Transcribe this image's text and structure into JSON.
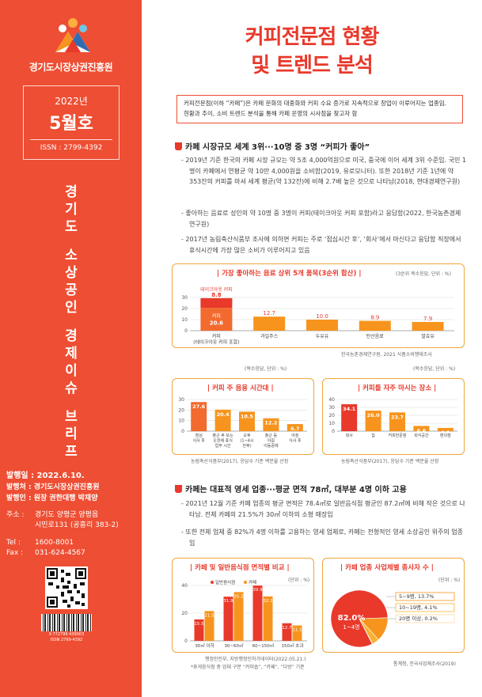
{
  "sidebar": {
    "org_name": "경기도시장상권진흥원",
    "year": "2022년",
    "month": "5월호",
    "issn": "ISSN : 2799-4392",
    "vertical_title": [
      "경기도",
      "소상공인",
      "경제이슈",
      "브리프"
    ],
    "pub_date": "발행일 : 2022.6.10.",
    "publisher": "발행처 : 경기도시장상권진흥원",
    "issuer": "발행인 : 원장 권한대행 박재양",
    "address_label": "주소 :",
    "address_1": "경기도 양평군 양평읍",
    "address_2": "시민로131 (공흥리 383-2)",
    "tel_label": "Tel :",
    "tel": "1600-8001",
    "fax_label": "Fax :",
    "fax": "031-624-4567",
    "barcode_text": "9 772799 439003",
    "barcode_issn": "ISSN 2799-4392"
  },
  "main": {
    "title_line1": "커피전문점 현황",
    "title_line2": "및 트렌드 분석",
    "intro_line1": "커피전문점(이하 “카페”)은 카페 문화의 대중화와 커피 수요 증가로 지속적으로 창업이 이루어지는 업종임.",
    "intro_line2": "현황과 추이, 소비 트렌드 분석을 통해 카페 운영의 시사점을 찾고자 함",
    "section1": "카페 시장규모 세계 3위···10명 중 3명 “커피가 좋아”",
    "s1_p1": "- 2019년 기준 한국의 카페 시장 규모는 약 5조 4,000억원으로 미국, 중국에 이어 세계 3위 수준임. 국민 1명이 카페에서 연평균 약 10만 4,000원을 소비함(2019, 유로모니터). 또한 2018년 기준 1년에 약 353잔의 커피를 마셔 세계 평균(약 132잔)에 비해 2.7배 높은 것으로 나타남(2018, 현대경제연구원)",
    "s1_p2": "- 좋아하는 음료로 성인의 약 10명 중 3명이 커피(테이크아웃 커피 포함)라고 응답함(2022, 한국농촌경제연구원)",
    "s1_p3": "- 2017년 농림축산식품부 조사에 의하면 커피는 주로 ‘점심시간 후’, ‘회사’에서 마신다고 응답함 직장에서 휴식시간에 가장 많은 소비가 이루어지고 있음",
    "section2": "카페는 대표적 영세 업종···평균 면적 78㎡, 대부분 4명 이하 고용",
    "s2_p1": "- 2021년 12월 기준 카페 업종의 평균 면적은 78.4㎡로 일반음식점 평균인 87.2㎡에 비해 작은 것으로 나타남. 전체 카페의 21.5%가 30㎡ 이하의 소형 매장임",
    "s2_p2": "- 또한 전체 업체 중 82%가 4명 이하를 고용하는 영세 업체로, 카페는 전형적인 영세 소상공인 위주의 업종임"
  },
  "charts": {
    "c1": {
      "title": "| 가장 좋아하는 음료 상위 5개 품목(3순위 합산) |",
      "unit": "(3순위 복수응답, 단위 : %)",
      "source": "한국농촌경제연구원, 2021 식품소비행태조사",
      "takeout_label": "테이크아웃 커피",
      "coffee_label": "커피"
    },
    "c2": {
      "title": "| 커피 주 음용 시간대 |",
      "unit": "(복수응답, 단위 : %)",
      "source": "농림축산식품부(2017), 응답수 기준 백분율 산정"
    },
    "c3": {
      "title": "| 커피를 자주 마시는 장소 |",
      "unit": "(복수응답, 단위 : %)",
      "source": "농림축산식품부(2017), 응답수 기준 백분율 산정"
    },
    "c4": {
      "title": "| 카페 및 일반음식점 면적별 비교 |",
      "unit": "(단위 : %)",
      "legend": [
        "일반음식점",
        "카페"
      ],
      "source": "행정안전부, 지방행정인허가데이터(2022.05.21.)",
      "note": "*휴게음식점 중 업태 구분 “커피숍”, “카페”, “다방” 기준"
    },
    "c5": {
      "title": "| 카페 업종 사업체별 종사자 수 |",
      "unit": "(단위 : %)",
      "source": "통계청, 전국사업체조사(2019)",
      "big_value": "82.0%",
      "big_label": "1~4명"
    }
  },
  "chart_data": [
    {
      "type": "bar",
      "categories": [
        "커피\n(테이크아웃 커피 포함)",
        "과일주스",
        "두유유",
        "탄산음료",
        "발효유"
      ],
      "series": [
        {
          "name": "커피",
          "values": [
            20.6,
            12.7,
            10.0,
            8.9,
            7.9
          ]
        },
        {
          "name": "테이크아웃 커피",
          "values": [
            8.8,
            0,
            0,
            0,
            0
          ]
        }
      ],
      "ylim": [
        0,
        30
      ],
      "yticks": [
        0,
        10,
        20,
        30
      ]
    },
    {
      "type": "bar",
      "categories": [
        "점심\n식사 후",
        "출근 후 또는\n오전에 휴식\n업무 시간",
        "오후\n(1~4시\n전후)",
        "출근 등\n아침\n이동중에",
        "아침\n식사 후"
      ],
      "values": [
        27.6,
        20.4,
        18.5,
        12.2,
        6.7
      ],
      "ylim": [
        0,
        30
      ],
      "yticks": [
        0,
        10,
        20,
        30
      ]
    },
    {
      "type": "bar",
      "categories": [
        "회사",
        "집",
        "커피전문점",
        "외식공간",
        "편의점"
      ],
      "values": [
        34.1,
        26.0,
        23.7,
        6.6,
        4.1
      ],
      "ylim": [
        0,
        40
      ],
      "yticks": [
        0,
        10,
        20,
        30,
        40
      ]
    },
    {
      "type": "bar",
      "categories": [
        "30㎡ 이하",
        "30~60㎡",
        "60~150㎡",
        "150㎡ 초과"
      ],
      "series": [
        {
          "name": "일반음식점",
          "values": [
            15.5,
            31.9,
            39.9,
            12.7
          ]
        },
        {
          "name": "카페",
          "values": [
            21.5,
            35.2,
            32.1,
            11.1
          ]
        }
      ],
      "ylim": [
        0,
        40
      ],
      "yticks": [
        0,
        20,
        40
      ]
    },
    {
      "type": "pie",
      "categories": [
        "1~4명",
        "5~9명",
        "10~19명",
        "20명 이상"
      ],
      "values": [
        82.0,
        13.7,
        4.1,
        0.2
      ],
      "labels": [
        "82.0%",
        "5~9명, 13.7%",
        "10~19명, 4.1%",
        "20명 이상, 0.2%"
      ]
    }
  ],
  "colors": {
    "accent": "#ee4e33",
    "orange": "#f7941d",
    "red": "#e8392b",
    "border": "#f0a63a"
  }
}
